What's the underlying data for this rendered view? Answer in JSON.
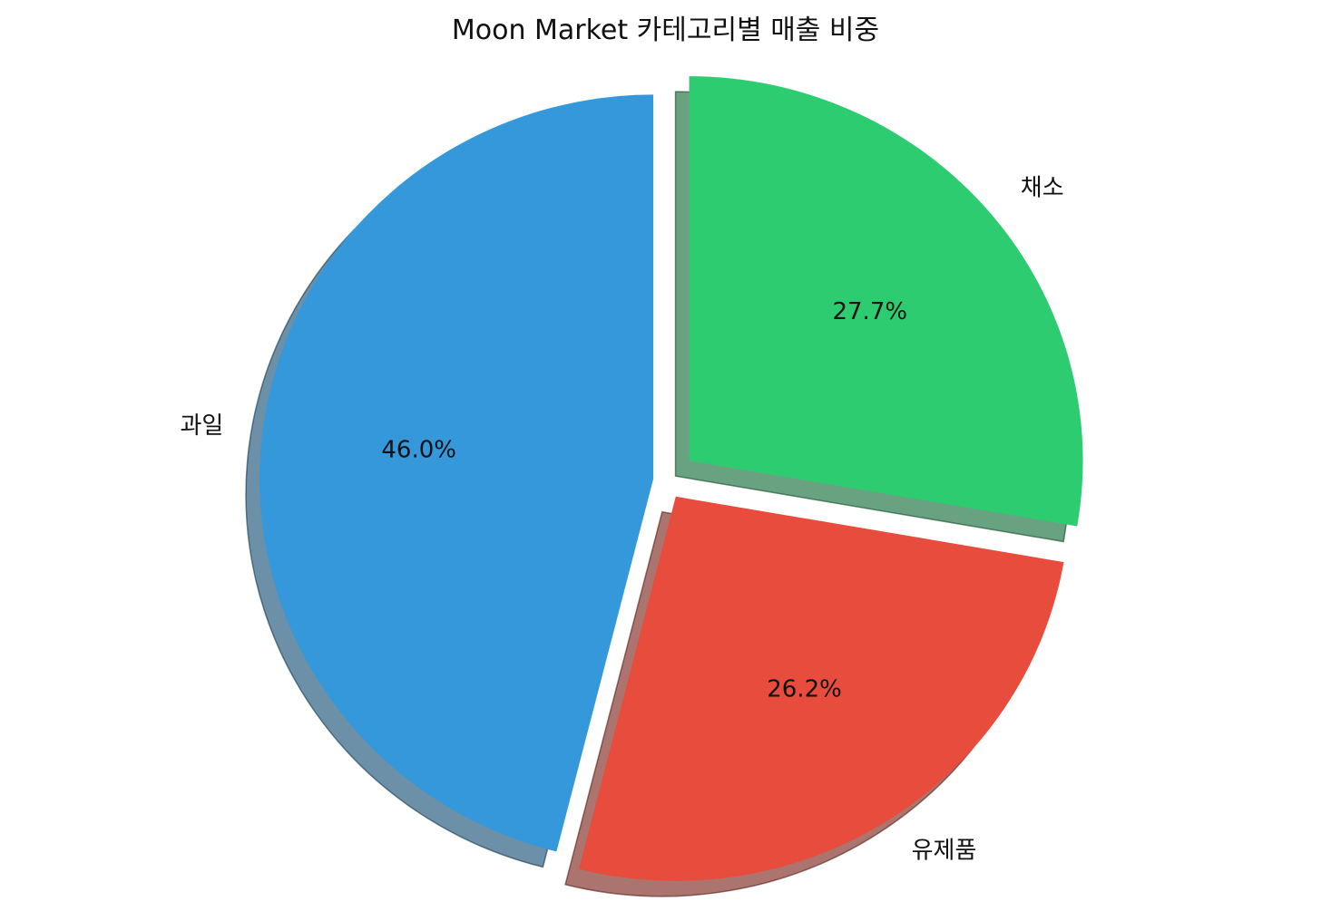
{
  "chart_data": {
    "type": "pie",
    "title": "Moon Market 카테고리별 매출 비중",
    "categories": [
      "과일",
      "유제품",
      "채소"
    ],
    "values": [
      46.0,
      26.2,
      27.7
    ],
    "percent_labels": [
      "46.0%",
      "26.2%",
      "27.7%"
    ],
    "colors": [
      "#3498db",
      "#e74c3c",
      "#2ecc71"
    ],
    "explode": [
      0.03,
      0.05,
      0.08
    ],
    "start_angle_deg": 90,
    "direction": "counterclockwise",
    "shadow": true
  }
}
